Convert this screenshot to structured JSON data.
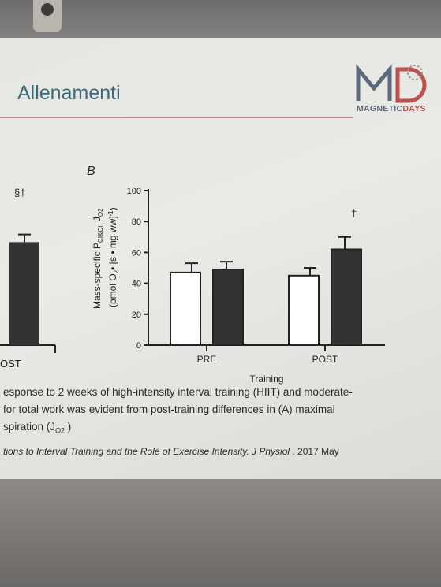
{
  "slide": {
    "title": "Allenamenti",
    "logo_text_main": "MAGNETIC",
    "logo_text_accent": "DAYS",
    "colors": {
      "title": "#3a6a7a",
      "rule": "#b88a88",
      "accent": "#c0504d"
    }
  },
  "chart_data": [
    {
      "type": "bar",
      "panel": "A",
      "visible": "partial",
      "categories": [
        "POST"
      ],
      "visible_category_label": "OST",
      "annotations": [
        "§†"
      ],
      "series": [
        {
          "values": [
            67
          ]
        }
      ],
      "error": [
        5
      ]
    },
    {
      "type": "bar",
      "panel_label": "B",
      "ylabel_line1": "Mass-specific P",
      "ylabel_sub1": "CI&CII",
      "ylabel_mid": " J",
      "ylabel_sub2": "O2",
      "ylabel_line2": "(pmol O",
      "ylabel_sub3": "2",
      "ylabel_line2b": "• [s • mg ww]",
      "ylabel_sup": "-1",
      "ylabel_line2c": ")",
      "xlabel": "Training",
      "categories": [
        "PRE",
        "POST"
      ],
      "ylim": [
        0,
        100
      ],
      "yticks": [
        0,
        20,
        40,
        60,
        80,
        100
      ],
      "annotations": [
        {
          "category": "POST",
          "text": "†"
        }
      ],
      "series": [
        {
          "fill": "white",
          "values": [
            47,
            45
          ],
          "error": [
            6,
            5
          ]
        },
        {
          "fill": "#333333",
          "values": [
            49,
            62
          ],
          "error": [
            5,
            8
          ]
        }
      ]
    }
  ],
  "caption": {
    "line1": "esponse to 2 weeks of high-intensity interval training (HIIT) and moderate-",
    "line2": "for total work was evident from post-training differences in (A) maximal",
    "line3_text": "spiration (J",
    "line3_sub": "O2",
    "line3_end": " )"
  },
  "reference": {
    "text": "tions to Interval Training and the Role of Exercise Intensity. J Physiol",
    "year": " . 2017 May"
  }
}
